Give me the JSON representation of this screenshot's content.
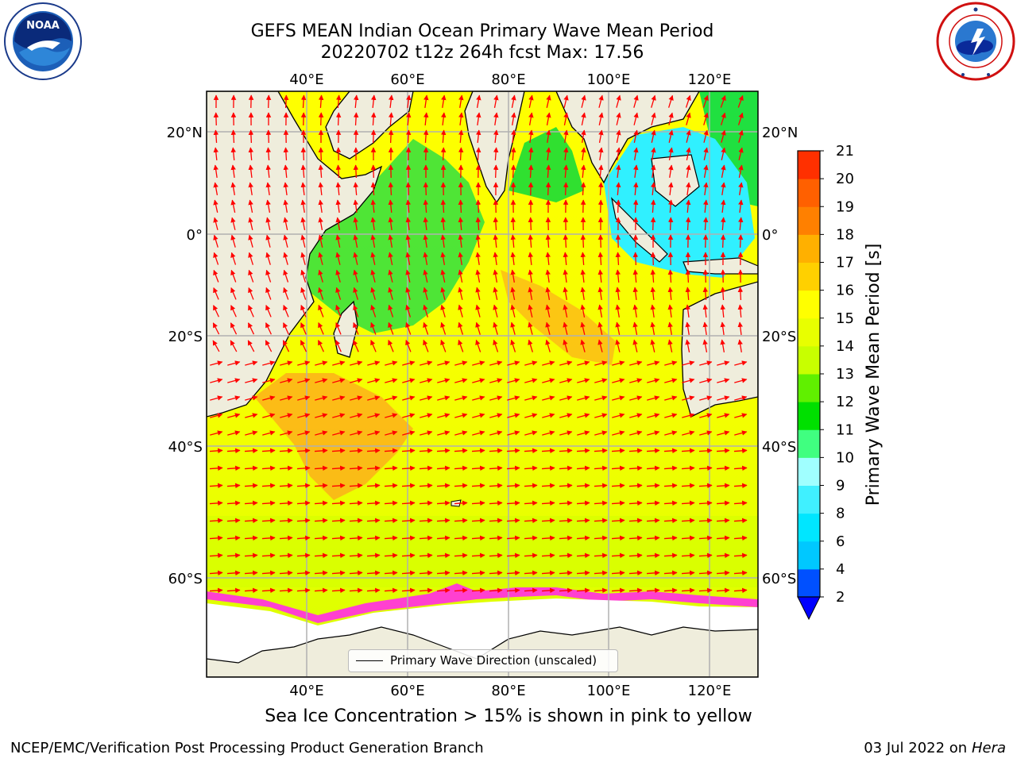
{
  "header": {
    "title_line1": "GEFS MEAN Indian Ocean Primary Wave Mean Period",
    "title_line2": "20220702 t12z 264h fcst   Max: 17.56"
  },
  "logos": {
    "left": {
      "name": "NOAA",
      "text": "NOAA",
      "ring_text": "NATIONAL OCEANIC AND ATMOSPHERIC ADMINISTRATION · U.S. DEPARTMENT OF COMMERCE"
    },
    "right": {
      "name": "National Weather Service",
      "ring_text": "NATIONAL WEATHER SERVICE"
    }
  },
  "map": {
    "top_lon_labels": [
      "40°E",
      "60°E",
      "80°E",
      "100°E",
      "120°E"
    ],
    "bottom_lon_labels": [
      "40°E",
      "60°E",
      "80°E",
      "100°E",
      "120°E"
    ],
    "lat_labels": [
      "20°N",
      "0°",
      "20°S",
      "40°S",
      "60°S"
    ],
    "legend": "Primary Wave Direction (unscaled)",
    "arrow_color": "#ff0000",
    "land_color": "#efeddc"
  },
  "colorbar": {
    "title": "Primary Wave Mean Period [s]",
    "ticks": [
      "2",
      "4",
      "6",
      "8",
      "9",
      "10",
      "11",
      "12",
      "13",
      "14",
      "15",
      "16",
      "17",
      "18",
      "19",
      "20",
      "21"
    ],
    "colors": [
      "#0050ff",
      "#00c8ff",
      "#00e6ff",
      "#40f0ff",
      "#a0ffff",
      "#40ff80",
      "#00e000",
      "#60f000",
      "#c8ff00",
      "#e8ff00",
      "#ffff00",
      "#ffd000",
      "#ffb000",
      "#ff8000",
      "#ff6000",
      "#ff3000",
      "#ff0000"
    ],
    "under_color": "#0000ff"
  },
  "footer": {
    "note": "Sea Ice Concentration > 15% is shown in pink to yellow",
    "credit": "NCEP/EMC/Verification Post Processing Product Generation Branch",
    "date": "03 Jul 2022 on",
    "host": "Hera"
  }
}
